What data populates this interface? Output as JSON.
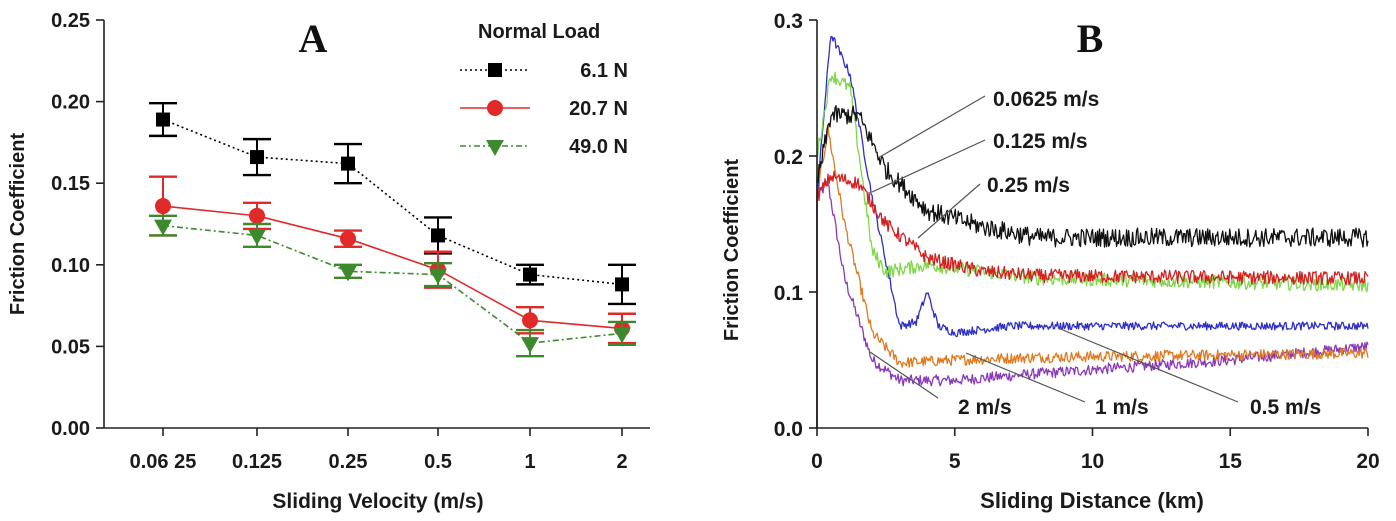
{
  "chart_data": [
    {
      "id": "A",
      "type": "line",
      "panel_label": "A",
      "xlabel": "Sliding Velocity (m/s)",
      "ylabel": "Friction Coefficient",
      "categories": [
        "0.06 25",
        "0.125",
        "0.25",
        "0.5",
        "1",
        "2"
      ],
      "ylim": [
        0,
        0.25
      ],
      "yticks": [
        "0.00",
        "0.05",
        "0.10",
        "0.15",
        "0.20",
        "0.25"
      ],
      "legend_title": "Normal Load",
      "legend_position": "top-right",
      "series": [
        {
          "name": "6.1 N",
          "color": "#000000",
          "marker": "square",
          "line": "dotted",
          "values": [
            0.189,
            0.166,
            0.162,
            0.118,
            0.094,
            0.088
          ],
          "errors": [
            0.01,
            0.011,
            0.012,
            0.011,
            0.006,
            0.012
          ]
        },
        {
          "name": "20.7 N",
          "color": "#e02a2a",
          "marker": "circle",
          "line": "solid",
          "values": [
            0.136,
            0.13,
            0.116,
            0.097,
            0.066,
            0.061
          ],
          "errors": [
            0.018,
            0.008,
            0.005,
            0.011,
            0.008,
            0.009
          ]
        },
        {
          "name": "49.0 N",
          "color": "#3d8a2e",
          "marker": "triangle-down",
          "line": "dashdot",
          "values": [
            0.124,
            0.118,
            0.096,
            0.094,
            0.052,
            0.058
          ],
          "errors": [
            0.006,
            0.007,
            0.004,
            0.007,
            0.008,
            0.007
          ]
        }
      ]
    },
    {
      "id": "B",
      "type": "line",
      "panel_label": "B",
      "xlabel": "Sliding Distance (km)",
      "ylabel": "Friction Coefficient",
      "xlim": [
        0,
        20
      ],
      "ylim": [
        0,
        0.3
      ],
      "xticks": [
        "0",
        "5",
        "10",
        "15",
        "20"
      ],
      "yticks": [
        "0.0",
        "0.1",
        "0.2",
        "0.3"
      ],
      "series": [
        {
          "name": "0.0625 m/s",
          "color": "#111111",
          "x": [
            0,
            0.5,
            1.5,
            2.5,
            4,
            6,
            8,
            20
          ],
          "values": [
            0.18,
            0.23,
            0.23,
            0.19,
            0.16,
            0.148,
            0.14,
            0.14
          ]
        },
        {
          "name": "0.125 m/s",
          "color": "#d42020",
          "x": [
            0,
            0.5,
            1.5,
            2.5,
            4,
            6,
            8,
            20
          ],
          "values": [
            0.17,
            0.185,
            0.18,
            0.15,
            0.125,
            0.115,
            0.112,
            0.11
          ]
        },
        {
          "name": "0.25 m/s",
          "color": "#7ed84a",
          "x": [
            0,
            0.5,
            1.2,
            2,
            2.5,
            4,
            6,
            8,
            20
          ],
          "values": [
            0.2,
            0.26,
            0.25,
            0.13,
            0.115,
            0.12,
            0.115,
            0.11,
            0.105
          ]
        },
        {
          "name": "0.5 m/s",
          "color": "#2e2ec8",
          "x": [
            0,
            0.5,
            1.2,
            2,
            3,
            3.6,
            4,
            4.4,
            5,
            7,
            20
          ],
          "values": [
            0.17,
            0.29,
            0.26,
            0.17,
            0.075,
            0.078,
            0.1,
            0.075,
            0.07,
            0.075,
            0.075
          ]
        },
        {
          "name": "1 m/s",
          "color": "#e07a20",
          "x": [
            0,
            0.4,
            1,
            2,
            3,
            5,
            8,
            20
          ],
          "values": [
            0.17,
            0.22,
            0.15,
            0.07,
            0.048,
            0.05,
            0.052,
            0.055
          ]
        },
        {
          "name": "2 m/s",
          "color": "#8a3ab8",
          "x": [
            0,
            0.4,
            1,
            2,
            3,
            5,
            8,
            15,
            20
          ],
          "values": [
            0.17,
            0.18,
            0.11,
            0.05,
            0.035,
            0.035,
            0.04,
            0.05,
            0.06
          ]
        }
      ],
      "annotations": [
        "0.0625 m/s",
        "0.125 m/s",
        "0.25 m/s",
        "2 m/s",
        "1 m/s",
        "0.5 m/s"
      ]
    }
  ]
}
